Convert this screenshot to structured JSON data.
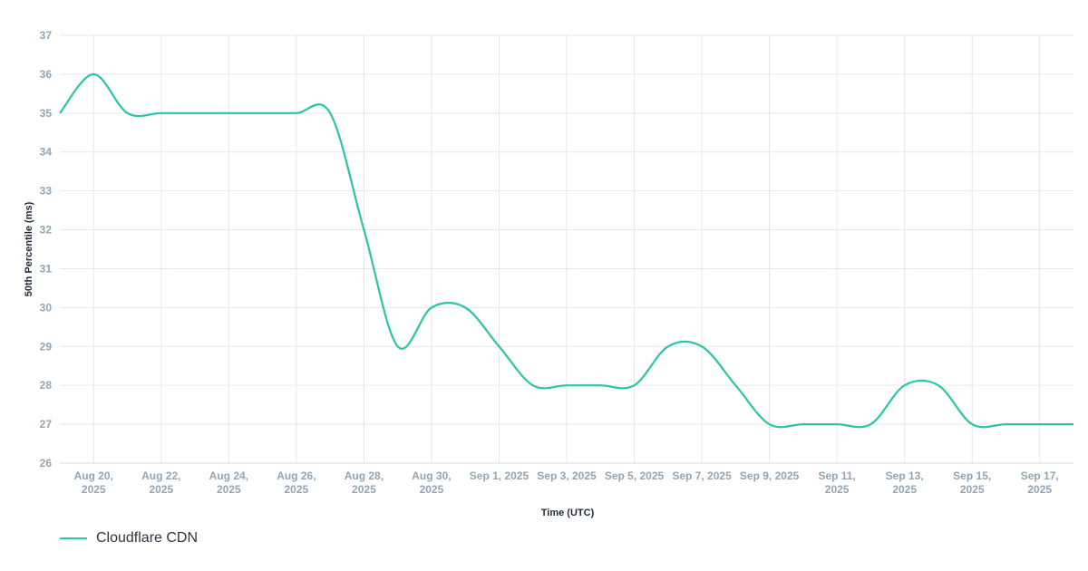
{
  "chart_data": {
    "type": "line",
    "xlabel": "Time (UTC)",
    "ylabel": "50th Percentile (ms)",
    "ylim": [
      26,
      37
    ],
    "yticks": [
      26,
      27,
      28,
      29,
      30,
      31,
      32,
      33,
      34,
      35,
      36,
      37
    ],
    "grid": true,
    "legend_placement": "bottom-left",
    "xlim": [
      "2025-08-19",
      "2025-09-18"
    ],
    "x_ticks": [
      {
        "date": "2025-08-20",
        "line1": "Aug 20,",
        "line2": "2025"
      },
      {
        "date": "2025-08-22",
        "line1": "Aug 22,",
        "line2": "2025"
      },
      {
        "date": "2025-08-24",
        "line1": "Aug 24,",
        "line2": "2025"
      },
      {
        "date": "2025-08-26",
        "line1": "Aug 26,",
        "line2": "2025"
      },
      {
        "date": "2025-08-28",
        "line1": "Aug 28,",
        "line2": "2025"
      },
      {
        "date": "2025-08-30",
        "line1": "Aug 30,",
        "line2": "2025"
      },
      {
        "date": "2025-09-01",
        "line1": "Sep 1, 2025",
        "line2": ""
      },
      {
        "date": "2025-09-03",
        "line1": "Sep 3, 2025",
        "line2": ""
      },
      {
        "date": "2025-09-05",
        "line1": "Sep 5, 2025",
        "line2": ""
      },
      {
        "date": "2025-09-07",
        "line1": "Sep 7, 2025",
        "line2": ""
      },
      {
        "date": "2025-09-09",
        "line1": "Sep 9, 2025",
        "line2": ""
      },
      {
        "date": "2025-09-11",
        "line1": "Sep 11,",
        "line2": "2025"
      },
      {
        "date": "2025-09-13",
        "line1": "Sep 13,",
        "line2": "2025"
      },
      {
        "date": "2025-09-15",
        "line1": "Sep 15,",
        "line2": "2025"
      },
      {
        "date": "2025-09-17",
        "line1": "Sep 17,",
        "line2": "2025"
      }
    ],
    "series": [
      {
        "name": "Cloudflare CDN",
        "color": "#2bc4a5",
        "points": [
          {
            "x": "2025-08-19",
            "y": 35
          },
          {
            "x": "2025-08-20",
            "y": 36
          },
          {
            "x": "2025-08-21",
            "y": 35
          },
          {
            "x": "2025-08-22",
            "y": 35
          },
          {
            "x": "2025-08-23",
            "y": 35
          },
          {
            "x": "2025-08-24",
            "y": 35
          },
          {
            "x": "2025-08-25",
            "y": 35
          },
          {
            "x": "2025-08-26",
            "y": 35
          },
          {
            "x": "2025-08-27",
            "y": 35
          },
          {
            "x": "2025-08-28",
            "y": 32
          },
          {
            "x": "2025-08-29",
            "y": 29
          },
          {
            "x": "2025-08-30",
            "y": 30
          },
          {
            "x": "2025-08-31",
            "y": 30
          },
          {
            "x": "2025-09-01",
            "y": 29
          },
          {
            "x": "2025-09-02",
            "y": 28
          },
          {
            "x": "2025-09-03",
            "y": 28
          },
          {
            "x": "2025-09-04",
            "y": 28
          },
          {
            "x": "2025-09-05",
            "y": 28
          },
          {
            "x": "2025-09-06",
            "y": 29
          },
          {
            "x": "2025-09-07",
            "y": 29
          },
          {
            "x": "2025-09-08",
            "y": 28
          },
          {
            "x": "2025-09-09",
            "y": 27
          },
          {
            "x": "2025-09-10",
            "y": 27
          },
          {
            "x": "2025-09-11",
            "y": 27
          },
          {
            "x": "2025-09-12",
            "y": 27
          },
          {
            "x": "2025-09-13",
            "y": 28
          },
          {
            "x": "2025-09-14",
            "y": 28
          },
          {
            "x": "2025-09-15",
            "y": 27
          },
          {
            "x": "2025-09-16",
            "y": 27
          },
          {
            "x": "2025-09-17",
            "y": 27
          },
          {
            "x": "2025-09-18",
            "y": 27
          }
        ]
      }
    ]
  }
}
